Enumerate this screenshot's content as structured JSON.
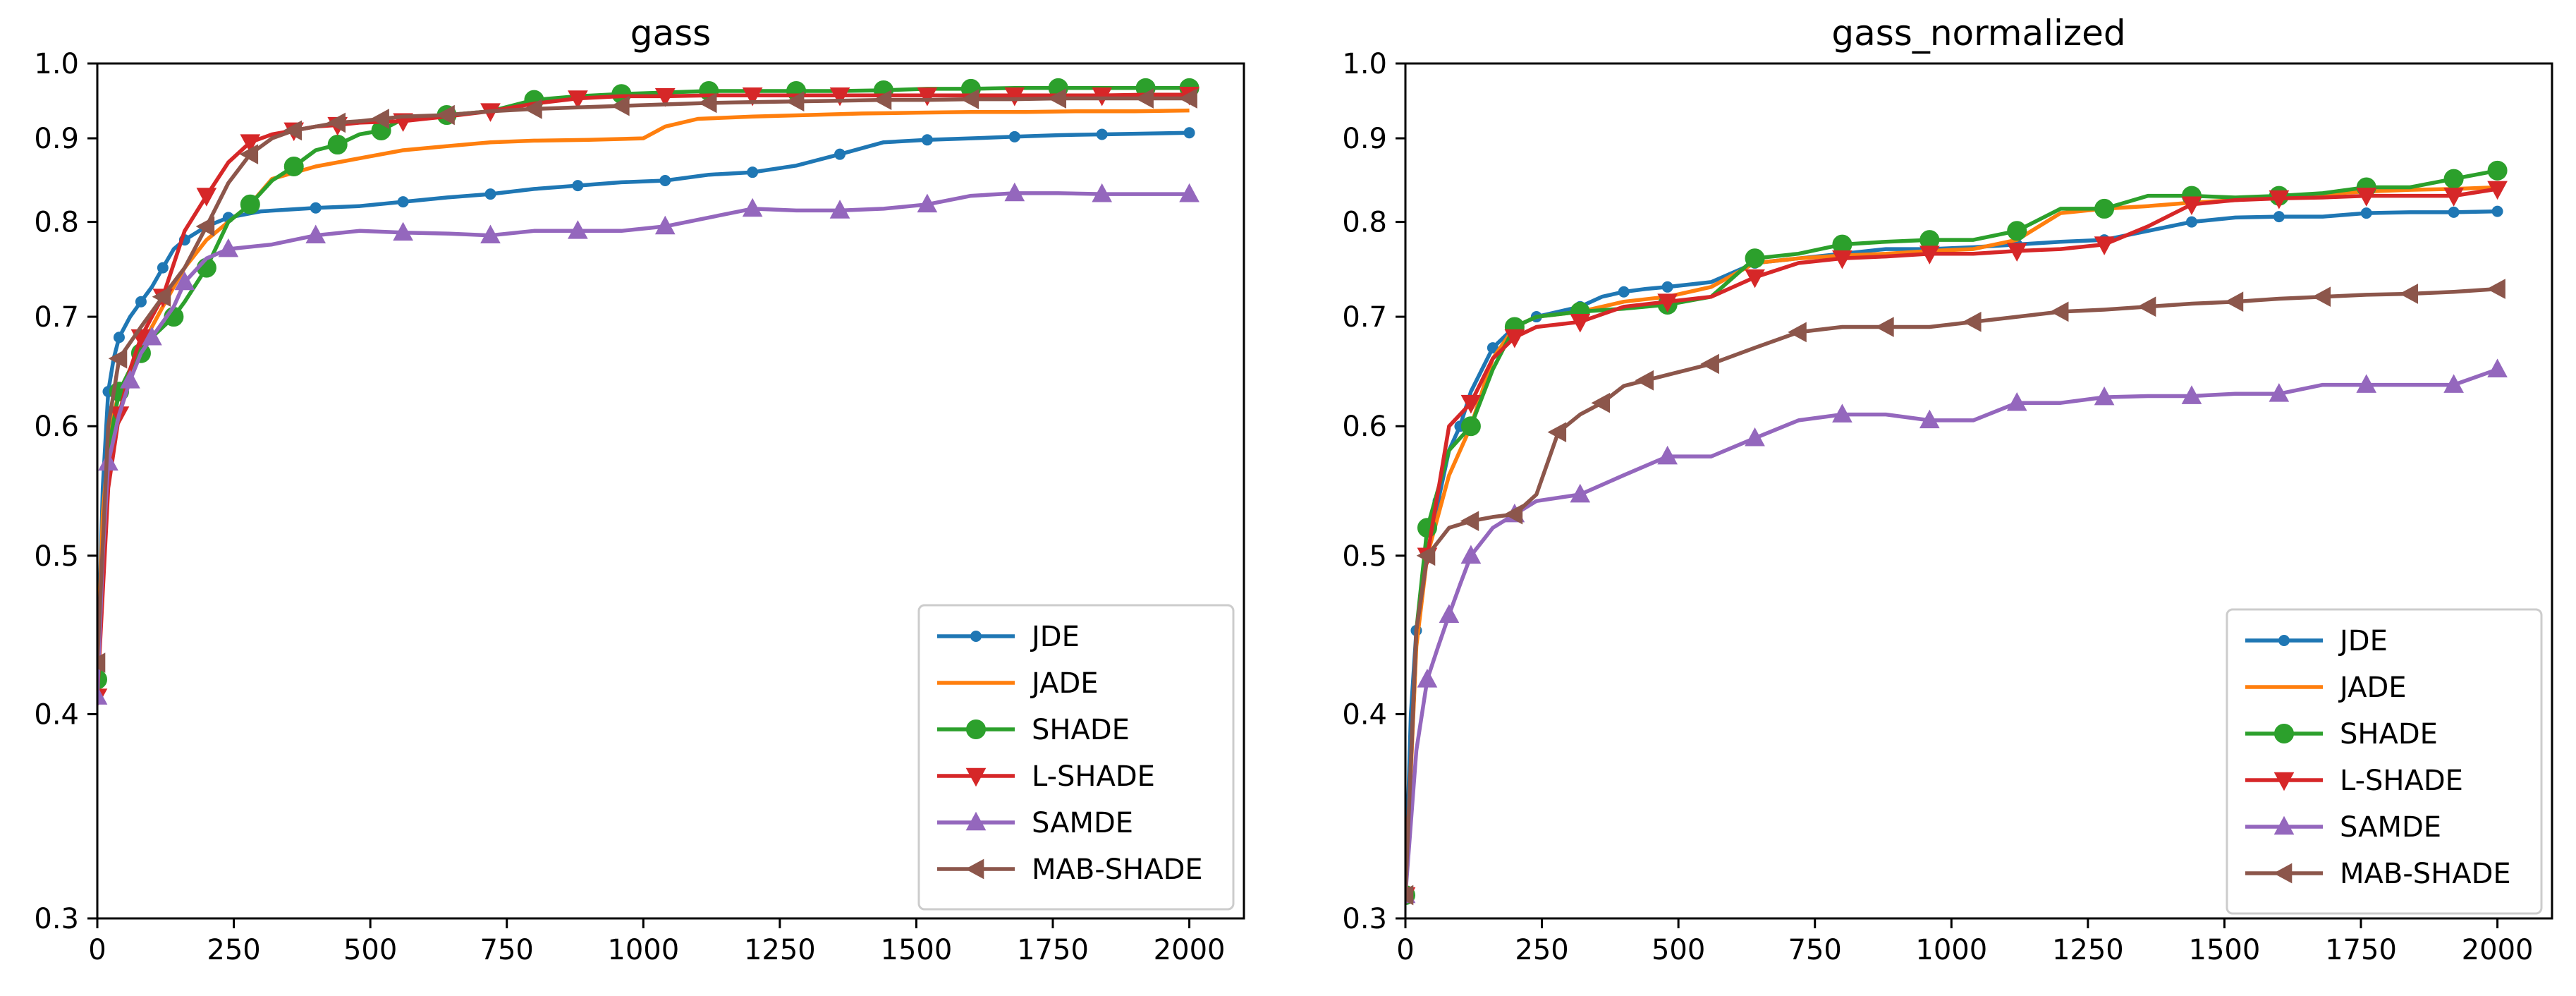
{
  "chart_data": [
    {
      "type": "line",
      "title": "gass",
      "xlabel": "",
      "ylabel": "",
      "xlim": [
        0,
        2100
      ],
      "ylim": [
        0.3,
        1.0
      ],
      "xticks": [
        0,
        250,
        500,
        750,
        1000,
        1250,
        1500,
        1750,
        2000
      ],
      "yticks": [
        0.3,
        0.4,
        0.5,
        0.6,
        0.7,
        0.8,
        0.9,
        1.0
      ],
      "x_tick_labels": [
        "0",
        "250",
        "500",
        "750",
        "1000",
        "1250",
        "1500",
        "1750",
        "2000"
      ],
      "y_tick_labels": [
        "0.3",
        "0.4",
        "0.5",
        "0.6",
        "0.7",
        "0.8",
        "0.9",
        "1.0"
      ],
      "y_scale": "log",
      "legend_position": "lower-right",
      "series": [
        {
          "name": "JDE",
          "color": "#1f77b4",
          "marker": "circle",
          "marker_size": "small",
          "x": [
            0,
            10,
            20,
            30,
            40,
            60,
            80,
            100,
            120,
            140,
            160,
            200,
            240,
            300,
            400,
            480,
            560,
            640,
            720,
            800,
            880,
            960,
            1040,
            1120,
            1200,
            1280,
            1360,
            1440,
            1520,
            1600,
            1680,
            1760,
            1840,
            1920,
            2000
          ],
          "y": [
            0.42,
            0.55,
            0.63,
            0.66,
            0.68,
            0.7,
            0.715,
            0.73,
            0.75,
            0.77,
            0.78,
            0.795,
            0.805,
            0.812,
            0.816,
            0.818,
            0.823,
            0.828,
            0.832,
            0.838,
            0.842,
            0.846,
            0.848,
            0.855,
            0.858,
            0.866,
            0.88,
            0.895,
            0.898,
            0.9,
            0.902,
            0.904,
            0.905,
            0.906,
            0.907
          ]
        },
        {
          "name": "JADE",
          "color": "#ff7f0e",
          "marker": "none",
          "x": [
            0,
            10,
            20,
            30,
            40,
            60,
            80,
            100,
            120,
            140,
            160,
            200,
            240,
            280,
            320,
            400,
            480,
            560,
            640,
            720,
            800,
            900,
            1000,
            1040,
            1100,
            1200,
            1300,
            1400,
            1500,
            1600,
            1700,
            1800,
            1900,
            2000
          ],
          "y": [
            0.42,
            0.53,
            0.58,
            0.61,
            0.63,
            0.65,
            0.67,
            0.69,
            0.71,
            0.73,
            0.75,
            0.78,
            0.8,
            0.82,
            0.85,
            0.865,
            0.875,
            0.885,
            0.89,
            0.895,
            0.897,
            0.898,
            0.9,
            0.915,
            0.925,
            0.928,
            0.93,
            0.932,
            0.933,
            0.934,
            0.934,
            0.935,
            0.935,
            0.936
          ]
        },
        {
          "name": "SHADE",
          "color": "#2ca02c",
          "marker": "circle",
          "marker_size": "large",
          "x": [
            0,
            20,
            40,
            60,
            80,
            100,
            140,
            160,
            200,
            240,
            280,
            320,
            360,
            400,
            440,
            480,
            520,
            560,
            640,
            720,
            800,
            880,
            960,
            1040,
            1120,
            1200,
            1280,
            1360,
            1440,
            1520,
            1600,
            1680,
            1760,
            1840,
            1920,
            2000
          ],
          "y": [
            0.42,
            0.58,
            0.63,
            0.65,
            0.665,
            0.68,
            0.7,
            0.715,
            0.75,
            0.8,
            0.82,
            0.848,
            0.865,
            0.885,
            0.892,
            0.905,
            0.91,
            0.925,
            0.93,
            0.935,
            0.95,
            0.955,
            0.958,
            0.96,
            0.962,
            0.962,
            0.962,
            0.962,
            0.963,
            0.965,
            0.965,
            0.966,
            0.966,
            0.966,
            0.966,
            0.966
          ]
        },
        {
          "name": "L-SHADE",
          "color": "#d62728",
          "marker": "triangle-down",
          "marker_size": "large",
          "x": [
            0,
            20,
            40,
            60,
            80,
            100,
            120,
            160,
            200,
            240,
            280,
            320,
            360,
            400,
            440,
            480,
            560,
            640,
            720,
            800,
            880,
            960,
            1040,
            1120,
            1200,
            1280,
            1360,
            1440,
            1520,
            1600,
            1680,
            1760,
            1840,
            1920,
            2000
          ],
          "y": [
            0.41,
            0.55,
            0.61,
            0.65,
            0.68,
            0.7,
            0.72,
            0.79,
            0.83,
            0.87,
            0.895,
            0.905,
            0.91,
            0.915,
            0.917,
            0.92,
            0.922,
            0.928,
            0.935,
            0.945,
            0.952,
            0.955,
            0.955,
            0.956,
            0.956,
            0.956,
            0.956,
            0.956,
            0.956,
            0.956,
            0.956,
            0.956,
            0.956,
            0.957,
            0.957
          ]
        },
        {
          "name": "SAMDE",
          "color": "#9467bd",
          "marker": "triangle-up",
          "marker_size": "large",
          "x": [
            0,
            10,
            20,
            40,
            60,
            80,
            100,
            140,
            160,
            200,
            240,
            320,
            400,
            480,
            560,
            640,
            720,
            800,
            880,
            960,
            1040,
            1120,
            1200,
            1280,
            1360,
            1440,
            1520,
            1600,
            1680,
            1760,
            1840,
            1920,
            2000
          ],
          "y": [
            0.41,
            0.5,
            0.57,
            0.61,
            0.64,
            0.665,
            0.68,
            0.71,
            0.735,
            0.76,
            0.77,
            0.775,
            0.785,
            0.79,
            0.788,
            0.787,
            0.785,
            0.79,
            0.79,
            0.79,
            0.795,
            0.805,
            0.815,
            0.813,
            0.813,
            0.815,
            0.82,
            0.83,
            0.833,
            0.833,
            0.832,
            0.832,
            0.832
          ]
        },
        {
          "name": "MAB-SHADE",
          "color": "#8c564b",
          "marker": "triangle-left",
          "marker_size": "large",
          "x": [
            0,
            20,
            40,
            80,
            120,
            160,
            200,
            240,
            280,
            320,
            360,
            400,
            440,
            480,
            520,
            560,
            640,
            720,
            800,
            880,
            960,
            1040,
            1120,
            1200,
            1280,
            1360,
            1440,
            1520,
            1600,
            1680,
            1760,
            1840,
            1920,
            2000
          ],
          "y": [
            0.43,
            0.6,
            0.66,
            0.69,
            0.72,
            0.75,
            0.795,
            0.845,
            0.88,
            0.9,
            0.91,
            0.915,
            0.92,
            0.922,
            0.925,
            0.928,
            0.93,
            0.935,
            0.938,
            0.94,
            0.942,
            0.944,
            0.946,
            0.947,
            0.948,
            0.949,
            0.95,
            0.95,
            0.951,
            0.951,
            0.952,
            0.952,
            0.952,
            0.952
          ]
        }
      ]
    },
    {
      "type": "line",
      "title": "gass_normalized",
      "xlabel": "",
      "ylabel": "",
      "xlim": [
        0,
        2100
      ],
      "ylim": [
        0.3,
        1.0
      ],
      "xticks": [
        0,
        250,
        500,
        750,
        1000,
        1250,
        1500,
        1750,
        2000
      ],
      "yticks": [
        0.3,
        0.4,
        0.5,
        0.6,
        0.7,
        0.8,
        0.9,
        1.0
      ],
      "x_tick_labels": [
        "0",
        "250",
        "500",
        "750",
        "1000",
        "1250",
        "1500",
        "1750",
        "2000"
      ],
      "y_tick_labels": [
        "0.3",
        "0.4",
        "0.5",
        "0.6",
        "0.7",
        "0.8",
        "0.9",
        "1.0"
      ],
      "y_scale": "log",
      "legend_position": "lower-right",
      "series": [
        {
          "name": "JDE",
          "color": "#1f77b4",
          "marker": "circle",
          "marker_size": "small",
          "x": [
            0,
            10,
            20,
            40,
            60,
            80,
            100,
            120,
            160,
            200,
            240,
            280,
            320,
            360,
            400,
            440,
            480,
            560,
            640,
            720,
            800,
            880,
            960,
            1040,
            1120,
            1200,
            1280,
            1360,
            1440,
            1520,
            1600,
            1680,
            1760,
            1840,
            1920,
            2000
          ],
          "y": [
            0.31,
            0.4,
            0.45,
            0.5,
            0.54,
            0.58,
            0.6,
            0.63,
            0.67,
            0.69,
            0.7,
            0.705,
            0.71,
            0.72,
            0.725,
            0.728,
            0.73,
            0.735,
            0.755,
            0.76,
            0.765,
            0.77,
            0.77,
            0.772,
            0.775,
            0.778,
            0.78,
            0.79,
            0.8,
            0.805,
            0.806,
            0.806,
            0.81,
            0.811,
            0.811,
            0.812
          ]
        },
        {
          "name": "JADE",
          "color": "#ff7f0e",
          "marker": "none",
          "x": [
            0,
            20,
            40,
            80,
            120,
            160,
            200,
            240,
            320,
            400,
            480,
            560,
            640,
            720,
            800,
            880,
            960,
            1040,
            1120,
            1200,
            1280,
            1360,
            1440,
            1520,
            1600,
            1680,
            1760,
            1840,
            1920,
            2000
          ],
          "y": [
            0.31,
            0.44,
            0.5,
            0.56,
            0.6,
            0.66,
            0.69,
            0.7,
            0.705,
            0.715,
            0.72,
            0.73,
            0.755,
            0.76,
            0.763,
            0.765,
            0.768,
            0.77,
            0.78,
            0.81,
            0.815,
            0.818,
            0.822,
            0.825,
            0.83,
            0.832,
            0.835,
            0.837,
            0.838,
            0.84
          ]
        },
        {
          "name": "SHADE",
          "color": "#2ca02c",
          "marker": "circle",
          "marker_size": "large",
          "x": [
            0,
            20,
            40,
            80,
            120,
            160,
            200,
            240,
            320,
            400,
            480,
            560,
            640,
            720,
            800,
            880,
            960,
            1040,
            1120,
            1200,
            1280,
            1360,
            1440,
            1520,
            1600,
            1680,
            1760,
            1840,
            1920,
            2000
          ],
          "y": [
            0.31,
            0.45,
            0.52,
            0.58,
            0.6,
            0.65,
            0.69,
            0.7,
            0.705,
            0.708,
            0.712,
            0.72,
            0.76,
            0.765,
            0.775,
            0.778,
            0.78,
            0.78,
            0.79,
            0.815,
            0.815,
            0.83,
            0.83,
            0.828,
            0.83,
            0.833,
            0.84,
            0.84,
            0.85,
            0.86
          ]
        },
        {
          "name": "L-SHADE",
          "color": "#d62728",
          "marker": "triangle-down",
          "marker_size": "large",
          "x": [
            0,
            20,
            40,
            80,
            120,
            160,
            200,
            240,
            320,
            400,
            480,
            560,
            640,
            720,
            800,
            880,
            960,
            1040,
            1120,
            1200,
            1280,
            1360,
            1440,
            1520,
            1600,
            1680,
            1760,
            1840,
            1920,
            2000
          ],
          "y": [
            0.31,
            0.45,
            0.5,
            0.6,
            0.62,
            0.66,
            0.68,
            0.69,
            0.695,
            0.71,
            0.715,
            0.72,
            0.74,
            0.755,
            0.76,
            0.762,
            0.765,
            0.765,
            0.768,
            0.77,
            0.775,
            0.795,
            0.82,
            0.825,
            0.827,
            0.828,
            0.83,
            0.83,
            0.83,
            0.838
          ]
        },
        {
          "name": "SAMDE",
          "color": "#9467bd",
          "marker": "triangle-up",
          "marker_size": "large",
          "x": [
            0,
            20,
            40,
            60,
            80,
            100,
            120,
            160,
            200,
            240,
            320,
            400,
            480,
            560,
            640,
            720,
            800,
            880,
            960,
            1040,
            1120,
            1200,
            1280,
            1360,
            1440,
            1520,
            1600,
            1680,
            1760,
            1840,
            1920,
            2000
          ],
          "y": [
            0.31,
            0.38,
            0.42,
            0.44,
            0.46,
            0.48,
            0.5,
            0.52,
            0.53,
            0.54,
            0.545,
            0.56,
            0.575,
            0.575,
            0.59,
            0.605,
            0.61,
            0.61,
            0.605,
            0.605,
            0.62,
            0.62,
            0.625,
            0.626,
            0.626,
            0.628,
            0.628,
            0.636,
            0.636,
            0.636,
            0.636,
            0.65
          ]
        },
        {
          "name": "MAB-SHADE",
          "color": "#8c564b",
          "marker": "triangle-left",
          "marker_size": "large",
          "x": [
            0,
            20,
            40,
            80,
            120,
            160,
            200,
            240,
            280,
            320,
            360,
            400,
            440,
            480,
            560,
            640,
            720,
            800,
            880,
            960,
            1040,
            1120,
            1200,
            1280,
            1360,
            1440,
            1520,
            1600,
            1680,
            1760,
            1840,
            1920,
            2000
          ],
          "y": [
            0.31,
            0.45,
            0.5,
            0.52,
            0.525,
            0.528,
            0.53,
            0.545,
            0.595,
            0.61,
            0.62,
            0.635,
            0.64,
            0.645,
            0.655,
            0.67,
            0.685,
            0.69,
            0.69,
            0.69,
            0.695,
            0.7,
            0.705,
            0.707,
            0.71,
            0.713,
            0.715,
            0.718,
            0.72,
            0.722,
            0.723,
            0.725,
            0.728
          ]
        }
      ]
    }
  ]
}
